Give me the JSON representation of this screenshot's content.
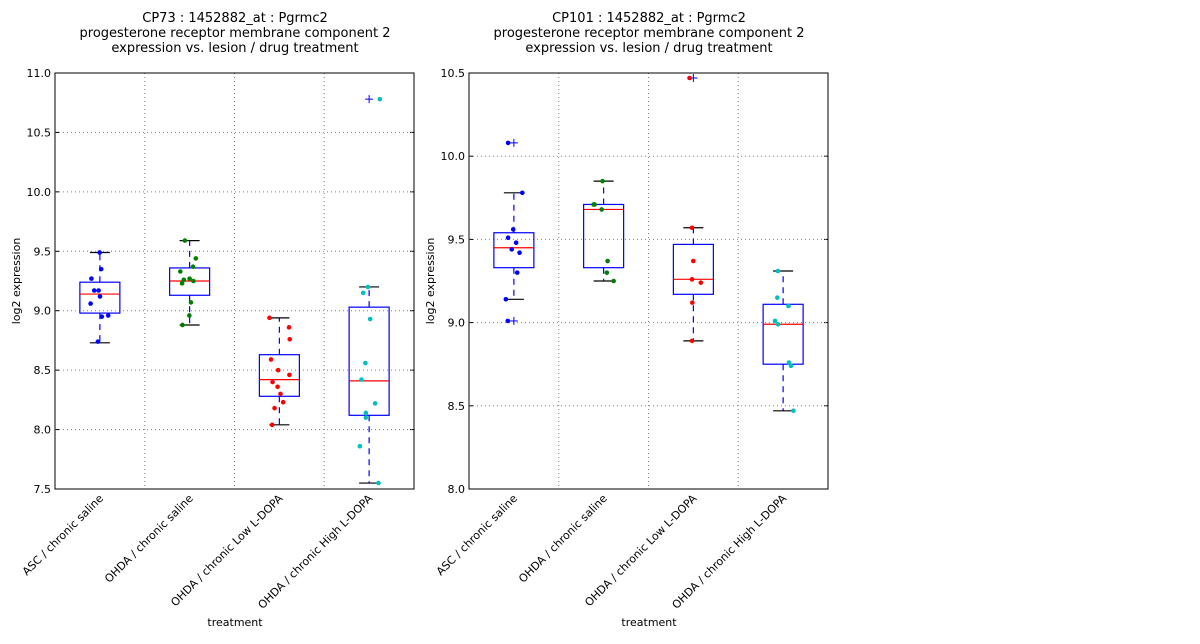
{
  "chart_data": [
    {
      "type": "box",
      "title_lines": [
        "CP73 : 1452882_at : Pgrmc2",
        "progesterone receptor membrane component 2",
        "expression vs. lesion / drug treatment"
      ],
      "xlabel": "treatment",
      "ylabel": "log2 expression",
      "ylim": [
        7.5,
        11.0
      ],
      "yticks": [
        7.5,
        8.0,
        8.5,
        9.0,
        9.5,
        10.0,
        10.5,
        11.0
      ],
      "ytick_labels": [
        "7.5",
        "8.0",
        "8.5",
        "9.0",
        "9.5",
        "10.0",
        "10.5",
        "11.0"
      ],
      "grid": true,
      "categories": [
        "ASC / chronic saline",
        "OHDA / chronic saline",
        "OHDA / chronic Low L-DOPA",
        "OHDA / chronic High L-DOPA"
      ],
      "groups": [
        {
          "color": "#0000ff",
          "whisker_low": 8.73,
          "q1": 8.98,
          "median": 9.14,
          "q3": 9.24,
          "whisker_high": 9.49,
          "outliers": [],
          "points": [
            9.49,
            9.35,
            9.27,
            9.17,
            9.17,
            9.12,
            9.06,
            8.96,
            8.95,
            8.74
          ]
        },
        {
          "color": "#008000",
          "whisker_low": 8.88,
          "q1": 9.13,
          "median": 9.25,
          "q3": 9.36,
          "whisker_high": 9.59,
          "outliers": [],
          "points": [
            9.59,
            9.44,
            9.37,
            9.33,
            9.27,
            9.26,
            9.25,
            9.23,
            9.07,
            8.96,
            8.88
          ]
        },
        {
          "color": "#ff0000",
          "whisker_low": 8.04,
          "q1": 8.28,
          "median": 8.42,
          "q3": 8.63,
          "whisker_high": 8.94,
          "outliers": [],
          "points": [
            8.94,
            8.86,
            8.76,
            8.59,
            8.5,
            8.46,
            8.4,
            8.36,
            8.3,
            8.23,
            8.18,
            8.04
          ]
        },
        {
          "color": "#00bfbf",
          "whisker_low": 7.55,
          "q1": 8.12,
          "median": 8.41,
          "q3": 9.03,
          "whisker_high": 9.2,
          "outliers": [
            10.78
          ],
          "points": [
            10.78,
            9.2,
            9.15,
            8.93,
            8.56,
            8.42,
            8.22,
            8.14,
            8.1,
            7.86,
            7.55
          ]
        }
      ]
    },
    {
      "type": "box",
      "title_lines": [
        "CP101 : 1452882_at : Pgrmc2",
        "progesterone receptor membrane component 2",
        "expression vs. lesion / drug treatment"
      ],
      "xlabel": "treatment",
      "ylabel": "log2 expression",
      "ylim": [
        8.0,
        10.5
      ],
      "yticks": [
        8.0,
        8.5,
        9.0,
        9.5,
        10.0,
        10.5
      ],
      "ytick_labels": [
        "8.0",
        "8.5",
        "9.0",
        "9.5",
        "10.0",
        "10.5"
      ],
      "grid": true,
      "categories": [
        "ASC / chronic saline",
        "OHDA / chronic saline",
        "OHDA / chronic Low L-DOPA",
        "OHDA / chronic High L-DOPA"
      ],
      "groups": [
        {
          "color": "#0000ff",
          "whisker_low": 9.14,
          "q1": 9.33,
          "median": 9.45,
          "q3": 9.54,
          "whisker_high": 9.78,
          "outliers": [
            10.08,
            9.01
          ],
          "points": [
            10.08,
            9.78,
            9.56,
            9.51,
            9.48,
            9.44,
            9.42,
            9.3,
            9.14,
            9.01
          ]
        },
        {
          "color": "#008000",
          "whisker_low": 9.25,
          "q1": 9.33,
          "median": 9.68,
          "q3": 9.71,
          "whisker_high": 9.85,
          "outliers": [],
          "points": [
            9.85,
            9.71,
            9.71,
            9.68,
            9.37,
            9.3,
            9.25
          ]
        },
        {
          "color": "#ff0000",
          "whisker_low": 8.89,
          "q1": 9.17,
          "median": 9.26,
          "q3": 9.47,
          "whisker_high": 9.57,
          "outliers": [
            10.47
          ],
          "points": [
            10.47,
            9.57,
            9.37,
            9.26,
            9.24,
            9.12,
            8.89
          ]
        },
        {
          "color": "#00bfbf",
          "whisker_low": 8.47,
          "q1": 8.75,
          "median": 8.99,
          "q3": 9.11,
          "whisker_high": 9.31,
          "outliers": [],
          "points": [
            9.31,
            9.15,
            9.1,
            9.01,
            8.99,
            8.76,
            8.74,
            8.47
          ]
        }
      ]
    }
  ]
}
